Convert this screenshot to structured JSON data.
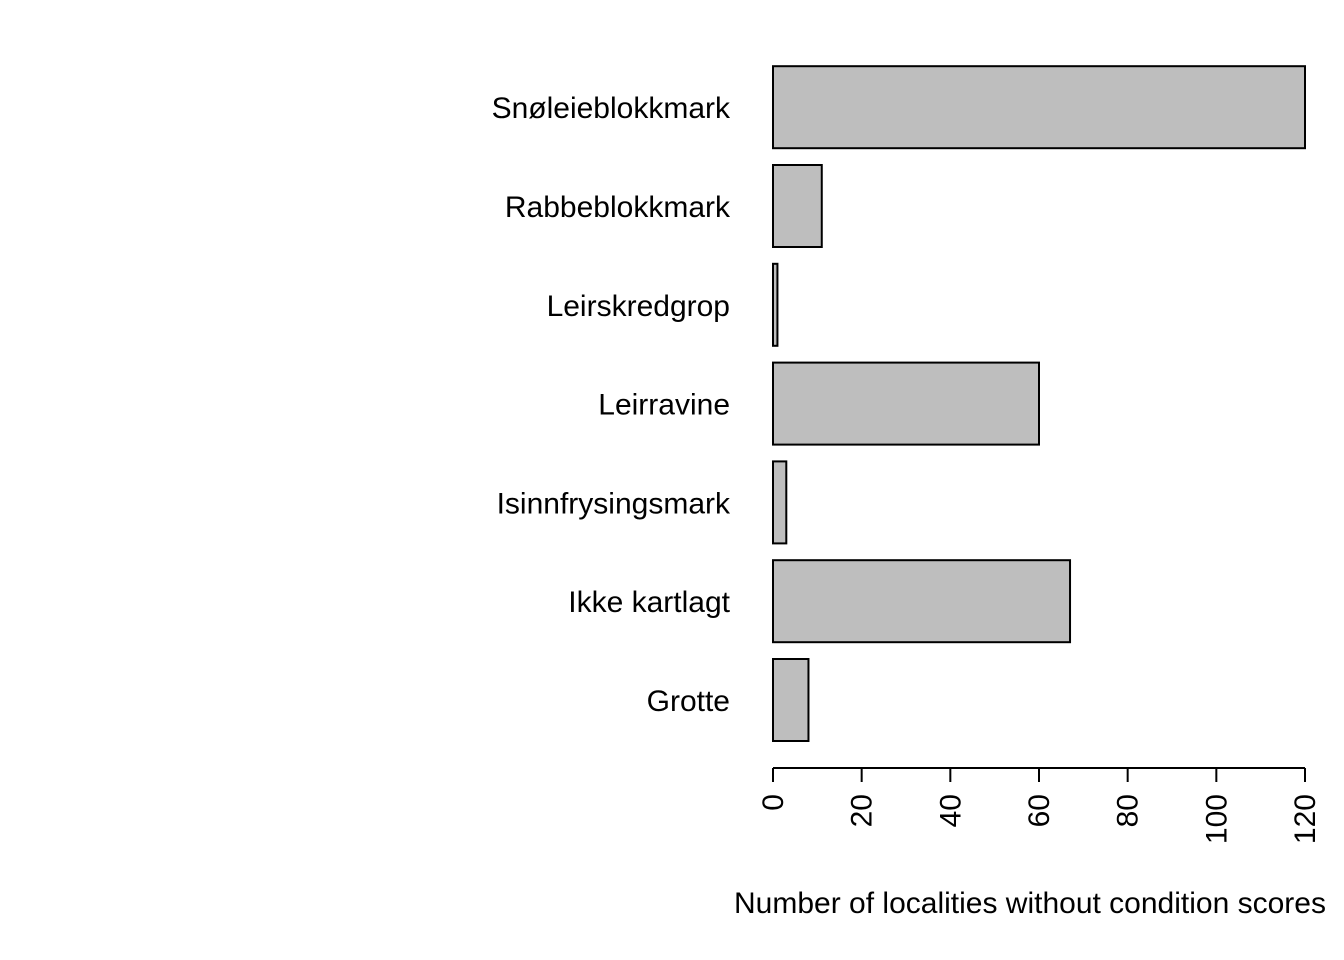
{
  "chart_data": {
    "type": "bar",
    "orientation": "horizontal",
    "categories": [
      "Grotte",
      "Ikke kartlagt",
      "Isinnfrysingsmark",
      "Leirravine",
      "Leirskredgrop",
      "Rabbeblokkmark",
      "Snøleieblokkmark"
    ],
    "values": [
      8,
      67,
      3,
      60,
      1,
      11,
      120
    ],
    "title": "",
    "xlabel": "Number of localities without condition scores",
    "ylabel": "",
    "xlim": [
      0,
      120
    ],
    "xticks": [
      0,
      20,
      40,
      60,
      80,
      100,
      120
    ],
    "tick_label_rotation": "vertical",
    "grid": false,
    "legend": "none",
    "colors": {
      "bar_fill": "#bebebe",
      "bar_stroke": "#000000",
      "axis": "#000000",
      "background": "#ffffff"
    }
  }
}
